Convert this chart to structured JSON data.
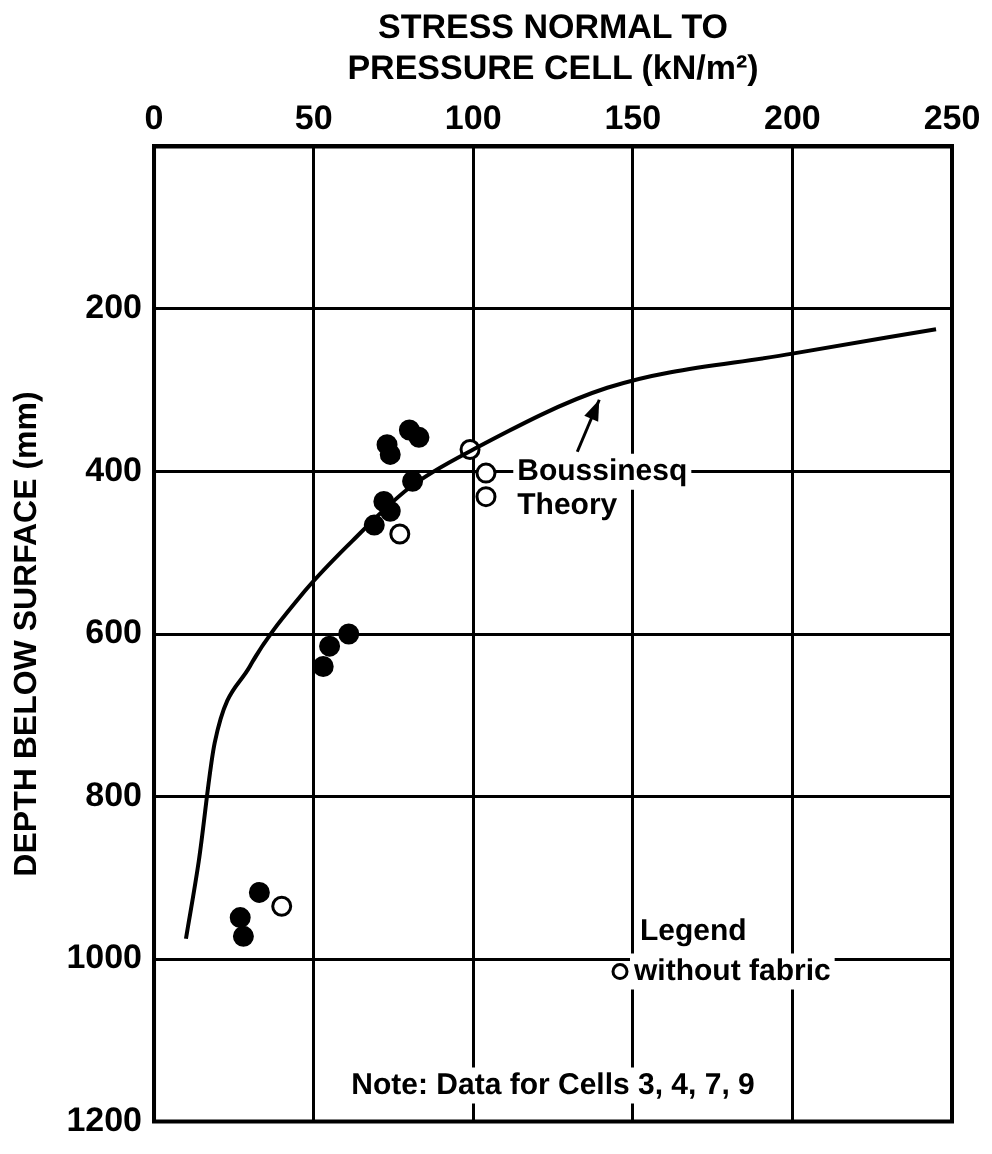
{
  "chart_data": {
    "type": "scatter",
    "xlabel": "STRESS NORMAL TO\nPRESSURE CELL (kN/m²)",
    "ylabel": "DEPTH BELOW SURFACE (mm)",
    "xlim": [
      0,
      250
    ],
    "xticks": [
      0,
      50,
      100,
      150,
      200,
      250
    ],
    "ylim": [
      1200,
      0
    ],
    "yticks": [
      200,
      400,
      600,
      800,
      1000,
      1200
    ],
    "grid": true,
    "marker": "circle",
    "legend": "bottom right",
    "legend_title": "Legend",
    "series": [
      {
        "name": "Boussinesq Theory",
        "type": "line",
        "color": "#000000",
        "marker": "none",
        "x": [
          10,
          14,
          19,
          30,
          46,
          62,
          80,
          100,
          142,
          200,
          245
        ],
        "values": [
          975,
          880,
          734,
          640,
          553,
          486,
          420,
          373,
          297,
          255,
          225
        ]
      },
      {
        "name": "without fabric",
        "color": "#ffffff",
        "x": [
          99,
          104,
          104,
          77,
          40
        ],
        "values": [
          373,
          402,
          431,
          477,
          935
        ]
      },
      {
        "color": "#000000",
        "x": [
          73,
          74,
          80,
          83,
          81,
          72,
          74,
          69,
          61,
          55,
          53,
          33,
          27,
          28
        ],
        "values": [
          367,
          379,
          349,
          358,
          412,
          437,
          449,
          466,
          600,
          615,
          640,
          918,
          949,
          972
        ]
      }
    ],
    "annotations": [
      "Note: Data for Cells 3, 4, 7, 9"
    ]
  }
}
